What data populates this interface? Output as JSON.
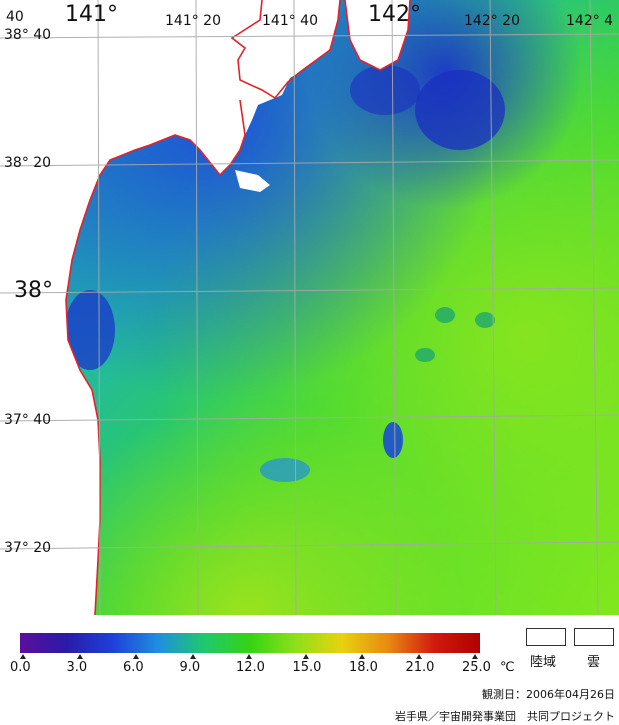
{
  "map": {
    "lat_labels": [
      "38° 40",
      "38° 20",
      "38°",
      "37° 40",
      "37° 20"
    ],
    "lon_labels": [
      "141°",
      "141° 20",
      "141° 40",
      "142°",
      "142° 20",
      "142° 4"
    ],
    "corner_label": "40",
    "coastline_color": "#e8202a",
    "land_color": "#ffffff",
    "grid_color": "#a8a8a8"
  },
  "colorbar": {
    "ticks": [
      "0.0",
      "3.0",
      "6.0",
      "9.0",
      "12.0",
      "15.0",
      "18.0",
      "21.0",
      "25.0"
    ],
    "unit": "℃",
    "colors": [
      "#5a0f9c",
      "#2a1aa8",
      "#1f3fd8",
      "#1f8ee0",
      "#1fc86e",
      "#34d412",
      "#8ee01a",
      "#e8d20e",
      "#e88a12",
      "#d21a0e",
      "#b00000"
    ]
  },
  "legend": {
    "land_label": "陸域",
    "cloud_label": "雲"
  },
  "observation_date": "観測日：2006年04月26日",
  "credit": "岩手県／宇宙開発事業団　共同プロジェクト"
}
